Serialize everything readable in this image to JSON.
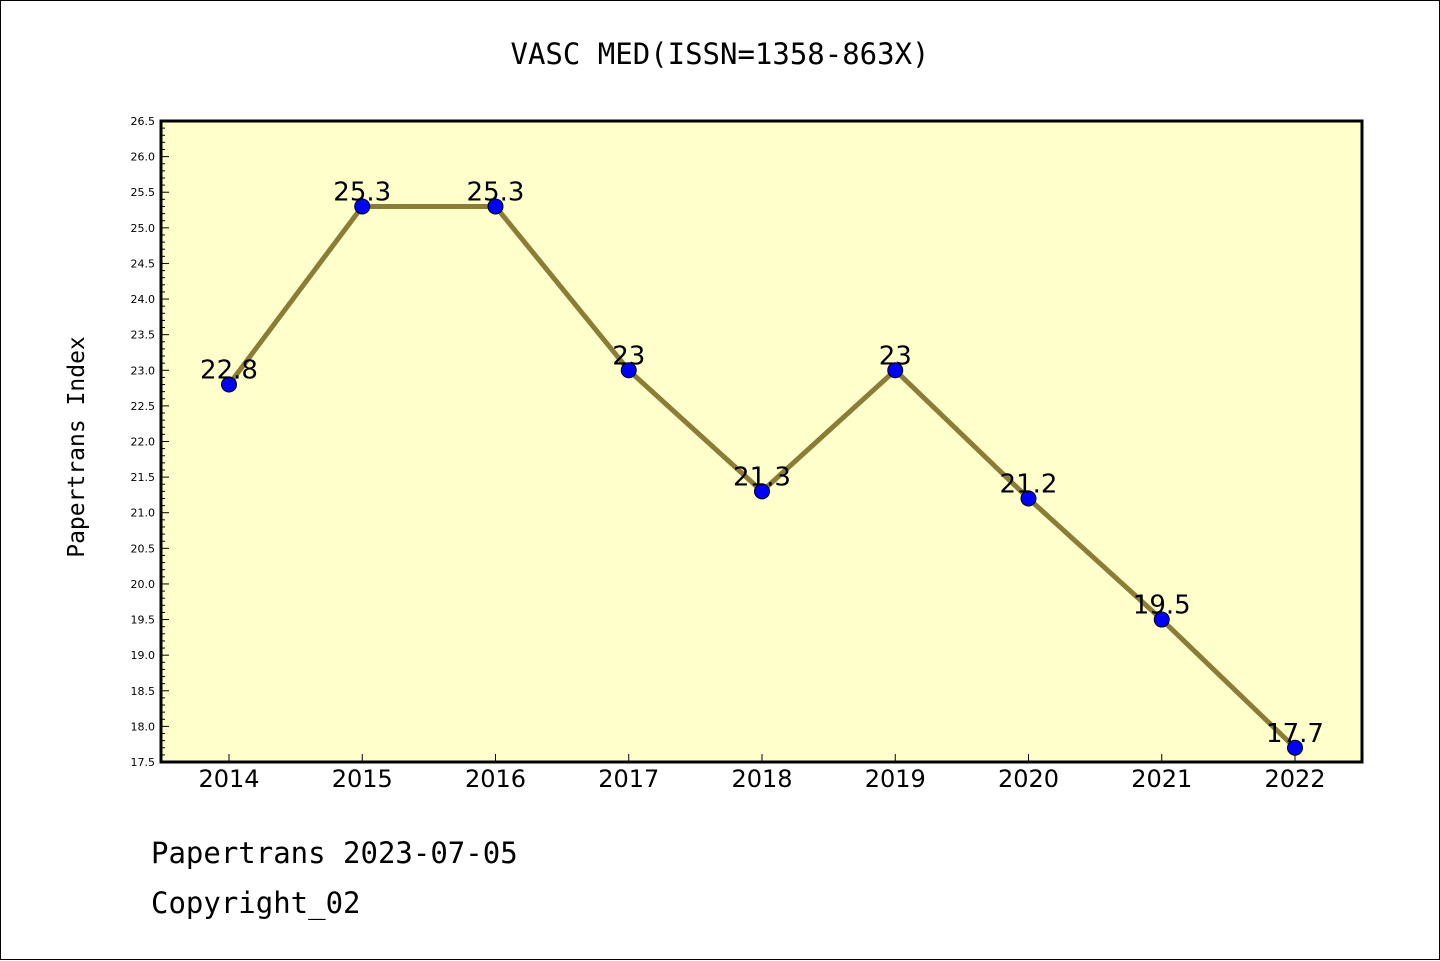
{
  "chart_data": {
    "type": "line",
    "title": "VASC MED(ISSN=1358-863X)",
    "xlabel": "",
    "ylabel": "Papertrans Index",
    "categories": [
      "2014",
      "2015",
      "2016",
      "2017",
      "2018",
      "2019",
      "2020",
      "2021",
      "2022"
    ],
    "values": [
      22.8,
      25.3,
      25.3,
      23,
      21.3,
      23,
      21.2,
      19.5,
      17.7
    ],
    "data_labels": [
      "22.8",
      "25.3",
      "25.3",
      "23",
      "21.3",
      "23",
      "21.2",
      "19.5",
      "17.7"
    ],
    "ylim": [
      17.5,
      26.5
    ],
    "yticks": [
      "17.5",
      "18.0",
      "18.5",
      "19.0",
      "19.5",
      "20.0",
      "20.5",
      "21.0",
      "21.5",
      "22.0",
      "22.5",
      "23.0",
      "23.5",
      "24.0",
      "24.5",
      "25.0",
      "25.5",
      "26.0",
      "26.5"
    ],
    "grid": false,
    "colors": {
      "background": "#ffffcc",
      "line": "#8b7d35",
      "marker": "#0000ff"
    }
  },
  "footer": {
    "line1": "Papertrans 2023-07-05",
    "line2": "Copyright_02"
  }
}
